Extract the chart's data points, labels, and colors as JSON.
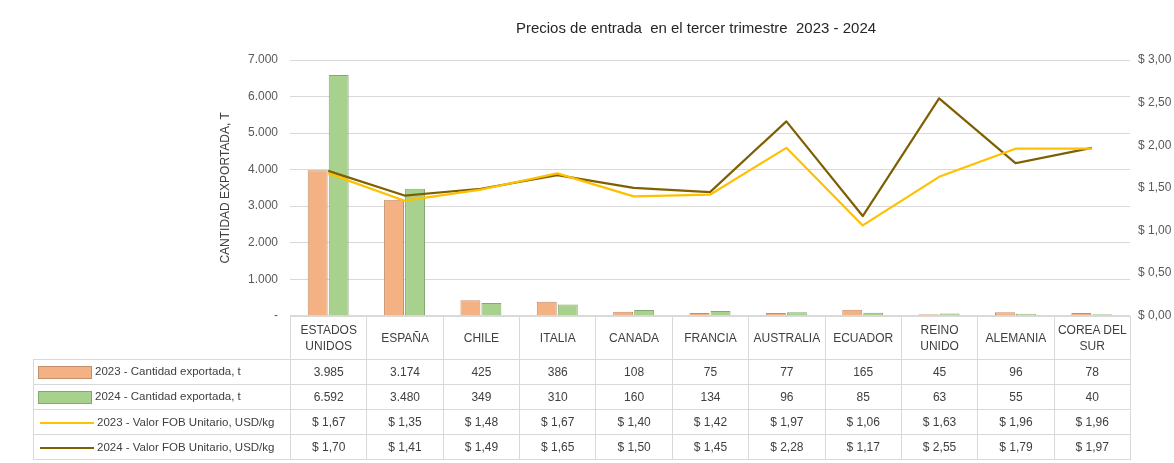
{
  "chart_data": {
    "type": "bar",
    "title": "Precios de entrada  en el tercer trimestre  2023 - 2024",
    "ylabel": "CANTIDAD EXPORTADA, T",
    "categories": [
      "ESTADOS UNIDOS",
      "ESPAÑA",
      "CHILE",
      "ITALIA",
      "CANADA",
      "FRANCIA",
      "AUSTRALIA",
      "ECUADOR",
      "REINO UNIDO",
      "ALEMANIA",
      "COREA DEL SUR"
    ],
    "series": [
      {
        "name": "2023 - Cantidad exportada, t",
        "color": "#f4b183",
        "values": [
          3985,
          3174,
          425,
          386,
          108,
          75,
          77,
          165,
          45,
          96,
          78
        ],
        "value_labels": [
          "3.985",
          "3.174",
          "425",
          "386",
          "108",
          "75",
          "77",
          "165",
          "45",
          "96",
          "78"
        ]
      },
      {
        "name": "2024 - Cantidad exportada, t",
        "color": "#a9d18e",
        "values": [
          6592,
          3480,
          349,
          310,
          160,
          134,
          96,
          85,
          63,
          55,
          40
        ],
        "value_labels": [
          "6.592",
          "3.480",
          "349",
          "310",
          "160",
          "134",
          "96",
          "85",
          "63",
          "55",
          "40"
        ]
      },
      {
        "name": "2023 - Valor FOB Unitario, USD/kg",
        "type": "line",
        "axis": "y2",
        "color": "#ffc000",
        "values": [
          1.67,
          1.35,
          1.48,
          1.67,
          1.4,
          1.42,
          1.97,
          1.06,
          1.63,
          1.96,
          1.96
        ],
        "value_labels": [
          "$ 1,67",
          "$ 1,35",
          "$ 1,48",
          "$ 1,67",
          "$ 1,40",
          "$ 1,42",
          "$ 1,97",
          "$ 1,06",
          "$ 1,63",
          "$ 1,96",
          "$ 1,96"
        ]
      },
      {
        "name": "2024 - Valor FOB Unitario, USD/kg",
        "type": "line",
        "axis": "y2",
        "color": "#7f6000",
        "values": [
          1.7,
          1.41,
          1.49,
          1.65,
          1.5,
          1.45,
          2.28,
          1.17,
          2.55,
          1.79,
          1.97
        ],
        "value_labels": [
          "$ 1,70",
          "$ 1,41",
          "$ 1,49",
          "$ 1,65",
          "$ 1,50",
          "$ 1,45",
          "$ 2,28",
          "$ 1,17",
          "$ 2,55",
          "$ 1,79",
          "$ 1,97"
        ]
      }
    ],
    "ylim": [
      0,
      7000
    ],
    "yticks": [
      {
        "value": 0,
        "label": "-"
      },
      {
        "value": 1000,
        "label": "1.000"
      },
      {
        "value": 2000,
        "label": "2.000"
      },
      {
        "value": 3000,
        "label": "3.000"
      },
      {
        "value": 4000,
        "label": "4.000"
      },
      {
        "value": 5000,
        "label": "5.000"
      },
      {
        "value": 6000,
        "label": "6.000"
      },
      {
        "value": 7000,
        "label": "7.000"
      }
    ],
    "y2lim": [
      0,
      3
    ],
    "y2ticks": [
      {
        "value": 0,
        "label": "$ 0,00"
      },
      {
        "value": 0.5,
        "label": "$ 0,50"
      },
      {
        "value": 1,
        "label": "$ 1,00"
      },
      {
        "value": 1.5,
        "label": "$ 1,50"
      },
      {
        "value": 2,
        "label": "$ 2,00"
      },
      {
        "value": 2.5,
        "label": "$ 2,50"
      },
      {
        "value": 3,
        "label": "$ 3,00"
      }
    ],
    "grid": "y",
    "legend": "bottom",
    "marker": "none",
    "line_style": "solid"
  }
}
